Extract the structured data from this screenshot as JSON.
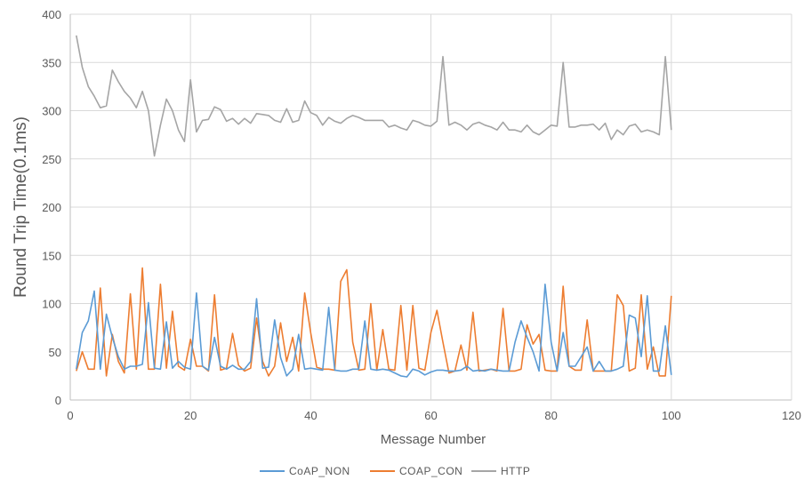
{
  "chart_data": {
    "type": "line",
    "title": "",
    "xlabel": "Message Number",
    "ylabel": "Round Trip Time(0.1ms)",
    "xlim": [
      0,
      120
    ],
    "ylim": [
      0,
      400
    ],
    "x_ticks": [
      0,
      20,
      40,
      60,
      80,
      100,
      120
    ],
    "y_ticks": [
      0,
      50,
      100,
      150,
      200,
      250,
      300,
      350,
      400
    ],
    "grid": true,
    "legend_position": "bottom",
    "x": [
      1,
      2,
      3,
      4,
      5,
      6,
      7,
      8,
      9,
      10,
      11,
      12,
      13,
      14,
      15,
      16,
      17,
      18,
      19,
      20,
      21,
      22,
      23,
      24,
      25,
      26,
      27,
      28,
      29,
      30,
      31,
      32,
      33,
      34,
      35,
      36,
      37,
      38,
      39,
      40,
      41,
      42,
      43,
      44,
      45,
      46,
      47,
      48,
      49,
      50,
      51,
      52,
      53,
      54,
      55,
      56,
      57,
      58,
      59,
      60,
      61,
      62,
      63,
      64,
      65,
      66,
      67,
      68,
      69,
      70,
      71,
      72,
      73,
      74,
      75,
      76,
      77,
      78,
      79,
      80,
      81,
      82,
      83,
      84,
      85,
      86,
      87,
      88,
      89,
      90,
      91,
      92,
      93,
      94,
      95,
      96,
      97,
      98,
      99,
      100
    ],
    "series": [
      {
        "name": "CoAP_NON",
        "color": "#5b9bd5",
        "values": [
          32,
          70,
          82,
          113,
          32,
          89,
          65,
          45,
          32,
          35,
          35,
          37,
          101,
          33,
          32,
          81,
          33,
          40,
          34,
          32,
          111,
          35,
          31,
          65,
          35,
          32,
          36,
          32,
          32,
          40,
          105,
          33,
          34,
          83,
          44,
          25,
          32,
          68,
          32,
          33,
          32,
          31,
          96,
          31,
          30,
          30,
          32,
          32,
          82,
          32,
          31,
          32,
          31,
          28,
          25,
          24,
          32,
          30,
          26,
          29,
          31,
          31,
          30,
          30,
          31,
          35,
          30,
          31,
          30,
          32,
          31,
          30,
          30,
          60,
          82,
          65,
          50,
          30,
          120,
          60,
          30,
          70,
          35,
          35,
          45,
          55,
          30,
          40,
          30,
          30,
          32,
          35,
          88,
          85,
          45,
          108,
          30,
          30,
          77,
          26
        ]
      },
      {
        "name": "COAP_CON",
        "color": "#ed7d31",
        "values": [
          30,
          50,
          32,
          32,
          116,
          25,
          68,
          40,
          28,
          110,
          32,
          137,
          32,
          32,
          120,
          33,
          92,
          35,
          31,
          63,
          35,
          35,
          30,
          109,
          31,
          33,
          69,
          36,
          30,
          33,
          85,
          40,
          25,
          35,
          80,
          40,
          65,
          30,
          111,
          70,
          34,
          32,
          32,
          31,
          123,
          135,
          60,
          31,
          32,
          100,
          31,
          73,
          32,
          31,
          98,
          31,
          98,
          33,
          31,
          70,
          93,
          60,
          28,
          30,
          57,
          31,
          91,
          30,
          31,
          32,
          30,
          95,
          30,
          30,
          32,
          78,
          58,
          68,
          31,
          30,
          30,
          118,
          35,
          31,
          31,
          83,
          30,
          30,
          30,
          30,
          109,
          98,
          30,
          33,
          109,
          32,
          55,
          25,
          25,
          108
        ]
      },
      {
        "name": "HTTP",
        "color": "#a5a5a5",
        "values": [
          378,
          345,
          325,
          315,
          303,
          305,
          342,
          330,
          320,
          313,
          303,
          320,
          300,
          253,
          285,
          312,
          300,
          280,
          268,
          332,
          278,
          290,
          291,
          304,
          301,
          289,
          292,
          286,
          292,
          287,
          297,
          296,
          295,
          290,
          288,
          302,
          288,
          290,
          310,
          298,
          295,
          285,
          293,
          289,
          287,
          292,
          295,
          293,
          290,
          290,
          290,
          290,
          283,
          285,
          282,
          280,
          290,
          288,
          285,
          284,
          289,
          356,
          285,
          288,
          285,
          280,
          286,
          288,
          285,
          283,
          280,
          288,
          280,
          280,
          278,
          285,
          278,
          275,
          280,
          285,
          284,
          350,
          283,
          283,
          285,
          285,
          286,
          280,
          287,
          270,
          280,
          275,
          284,
          286,
          278,
          280,
          278,
          275,
          356,
          280
        ]
      }
    ]
  }
}
